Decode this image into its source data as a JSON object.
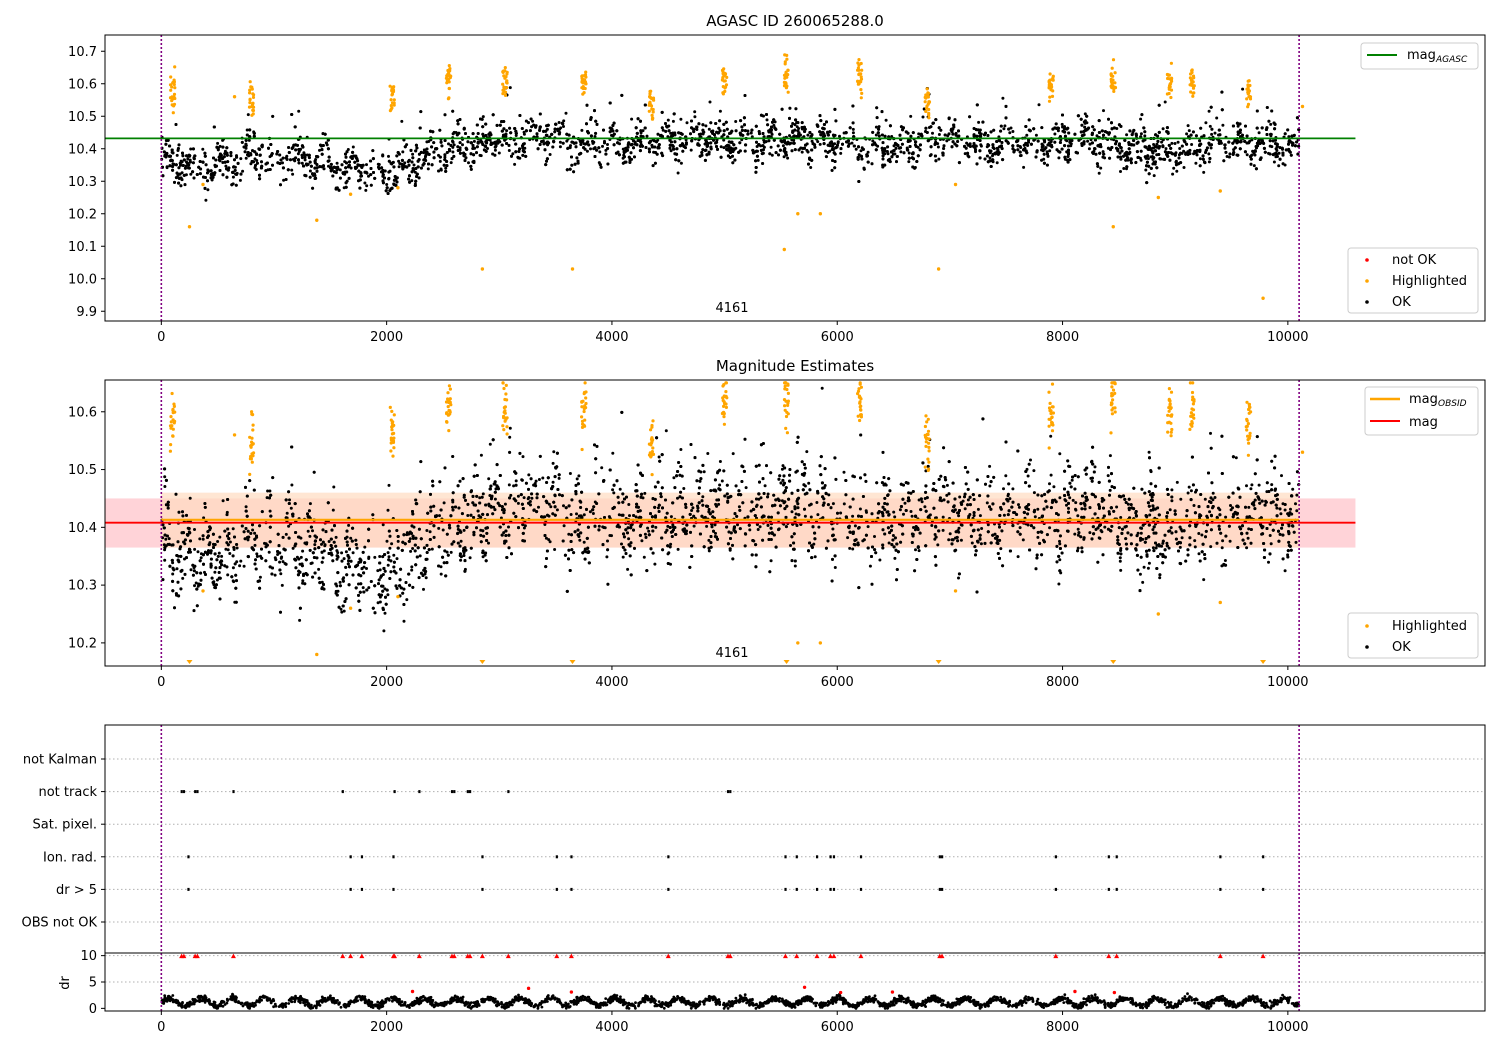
{
  "chart_data": [
    {
      "type": "scatter",
      "title": "AGASC ID 260065288.0",
      "xlabel": "",
      "ylabel": "",
      "xlim": [
        -500,
        11750
      ],
      "ylim": [
        9.87,
        10.75
      ],
      "xticks": [
        0,
        2000,
        4000,
        6000,
        8000,
        10000
      ],
      "yticks": [
        9.9,
        10.0,
        10.1,
        10.2,
        10.3,
        10.4,
        10.5,
        10.6,
        10.7
      ],
      "ytick_labels": [
        "9.9",
        "10.0",
        "10.1",
        "10.2",
        "10.3",
        "10.4",
        "10.5",
        "10.6",
        "10.7"
      ],
      "grid": false,
      "annotation": "4161",
      "annotation_x": 5000,
      "vlines": [
        0,
        10100
      ],
      "hlines": [
        {
          "name": "mag_AGASC",
          "y": 10.432,
          "x_range": [
            -500,
            10600
          ],
          "color": "#008000"
        }
      ],
      "legends": [
        {
          "position": "upper right",
          "entries": [
            {
              "label": "mag",
              "sub": "AGASC",
              "kind": "line",
              "color": "#008000"
            }
          ]
        },
        {
          "position": "lower right",
          "entries": [
            {
              "label": "not OK",
              "kind": "dot",
              "color": "#ff0000"
            },
            {
              "label": "Highlighted",
              "kind": "dot",
              "color": "#ffa500"
            },
            {
              "label": "OK",
              "kind": "dot",
              "color": "#000000"
            }
          ]
        }
      ],
      "series": [
        {
          "name": "OK",
          "color": "#000000",
          "x_range": [
            0,
            10100
          ],
          "mean_curve": [
            [
              0,
              10.37
            ],
            [
              400,
              10.34
            ],
            [
              800,
              10.38
            ],
            [
              1200,
              10.37
            ],
            [
              1500,
              10.35
            ],
            [
              1800,
              10.33
            ],
            [
              2100,
              10.33
            ],
            [
              2400,
              10.39
            ],
            [
              2800,
              10.42
            ],
            [
              3300,
              10.44
            ],
            [
              3800,
              10.41
            ],
            [
              4300,
              10.42
            ],
            [
              4800,
              10.43
            ],
            [
              5300,
              10.42
            ],
            [
              5800,
              10.44
            ],
            [
              6300,
              10.4
            ],
            [
              6800,
              10.43
            ],
            [
              7300,
              10.41
            ],
            [
              7800,
              10.42
            ],
            [
              8200,
              10.43
            ],
            [
              8700,
              10.39
            ],
            [
              9200,
              10.41
            ],
            [
              9700,
              10.42
            ],
            [
              10100,
              10.4
            ]
          ],
          "spread": 0.03
        },
        {
          "name": "Highlighted",
          "color": "#ffa500",
          "clusters": [
            [
              100,
              10.58
            ],
            [
              800,
              10.55
            ],
            [
              2050,
              10.57
            ],
            [
              2550,
              10.61
            ],
            [
              3050,
              10.61
            ],
            [
              3750,
              10.6
            ],
            [
              4350,
              10.54
            ],
            [
              5000,
              10.62
            ],
            [
              5550,
              10.62
            ],
            [
              6200,
              10.61
            ],
            [
              6800,
              10.55
            ],
            [
              7900,
              10.59
            ],
            [
              8450,
              10.62
            ],
            [
              8950,
              10.6
            ],
            [
              9150,
              10.61
            ],
            [
              9650,
              10.58
            ]
          ],
          "outliers": [
            [
              250,
              10.16
            ],
            [
              370,
              10.29
            ],
            [
              650,
              10.56
            ],
            [
              1380,
              10.18
            ],
            [
              1680,
              10.26
            ],
            [
              2100,
              10.28
            ],
            [
              2850,
              10.03
            ],
            [
              3650,
              10.03
            ],
            [
              5530,
              10.09
            ],
            [
              5650,
              10.2
            ],
            [
              5850,
              10.2
            ],
            [
              6900,
              10.03
            ],
            [
              7050,
              10.29
            ],
            [
              8450,
              10.16
            ],
            [
              8850,
              10.25
            ],
            [
              9400,
              10.27
            ],
            [
              9780,
              9.94
            ],
            [
              10130,
              10.53
            ]
          ]
        }
      ]
    },
    {
      "type": "scatter",
      "title": "Magnitude Estimates",
      "xlabel": "",
      "ylabel": "",
      "xlim": [
        -500,
        11750
      ],
      "ylim": [
        10.16,
        10.655
      ],
      "xticks": [
        0,
        2000,
        4000,
        6000,
        8000,
        10000
      ],
      "yticks": [
        10.2,
        10.3,
        10.4,
        10.5,
        10.6
      ],
      "ytick_labels": [
        "10.2",
        "10.3",
        "10.4",
        "10.5",
        "10.6"
      ],
      "grid": false,
      "annotation": "4161",
      "annotation_x": 5000,
      "vlines": [
        0,
        10100
      ],
      "bands": [
        {
          "y": [
            10.365,
            10.45
          ],
          "x_range": [
            -500,
            10600
          ],
          "color": "#ffc0c8"
        },
        {
          "y": [
            10.365,
            10.46
          ],
          "x_range": [
            0,
            10100
          ],
          "color": "#ffdcc0"
        }
      ],
      "hlines": [
        {
          "name": "mag",
          "y": 10.408,
          "x_range": [
            -500,
            10600
          ],
          "color": "#ff0000"
        },
        {
          "name": "mag_OBSID",
          "y": 10.413,
          "x_range": [
            0,
            10100
          ],
          "color": "#ffa500"
        }
      ],
      "clipped_markers_x": [
        250,
        2850,
        3650,
        5550,
        6900,
        8450,
        9780
      ],
      "legends": [
        {
          "position": "upper right",
          "entries": [
            {
              "label": "mag",
              "sub": "OBSID",
              "kind": "line",
              "color": "#ffa500"
            },
            {
              "label": "mag",
              "kind": "line",
              "color": "#ff0000"
            }
          ]
        },
        {
          "position": "lower right",
          "entries": [
            {
              "label": "Highlighted",
              "kind": "dot",
              "color": "#ffa500"
            },
            {
              "label": "OK",
              "kind": "dot",
              "color": "#000000"
            }
          ]
        }
      ]
    },
    {
      "type": "scatter",
      "title": "",
      "xlabel": "",
      "ylabel": "",
      "xlim": [
        -500,
        11750
      ],
      "categories": [
        "not Kalman",
        "not track",
        "Sat. pixel.",
        "Ion. rad.",
        "dr > 5",
        "OBS not OK"
      ],
      "vlines": [
        0,
        10100
      ],
      "flags": {
        "not Kalman": [],
        "not track": [
          180,
          200,
          300,
          320,
          640,
          1610,
          2070,
          2290,
          2580,
          2600,
          2720,
          2740,
          3080,
          5030,
          5050
        ],
        "Sat. pixel.": [],
        "Ion. rad.": [
          240,
          1680,
          1780,
          2060,
          2850,
          3510,
          3640,
          4500,
          5540,
          5640,
          5820,
          5940,
          5970,
          6210,
          6910,
          6930,
          7940,
          8410,
          8480,
          9400,
          9780
        ],
        "dr > 5": [
          240,
          1680,
          1780,
          2060,
          2850,
          3510,
          3640,
          4500,
          5540,
          5640,
          5820,
          5940,
          5970,
          6210,
          6910,
          6930,
          7940,
          8410,
          8480,
          9400,
          9780
        ],
        "OBS not OK": []
      }
    },
    {
      "type": "scatter",
      "title": "",
      "xlabel": "",
      "ylabel": "dr",
      "xlim": [
        -500,
        11750
      ],
      "ylim": [
        -0.5,
        10.5
      ],
      "xticks": [
        0,
        2000,
        4000,
        6000,
        8000,
        10000
      ],
      "yticks": [
        0,
        5,
        10
      ],
      "ytick_labels": [
        "0",
        "5",
        "10"
      ],
      "vlines": [
        0,
        10100
      ],
      "series": [
        {
          "name": "OK",
          "color": "#000000",
          "x_range": [
            0,
            10100
          ],
          "typical": 1.2,
          "amplitude": 1.0
        },
        {
          "name": "not OK",
          "color": "#ff0000",
          "clipped_at": 10,
          "x": [
            180,
            200,
            300,
            320,
            640,
            1610,
            1680,
            1780,
            2060,
            2070,
            2290,
            2580,
            2600,
            2720,
            2740,
            2850,
            3080,
            3510,
            3640,
            4500,
            5030,
            5050,
            5540,
            5640,
            5820,
            5940,
            5970,
            6210,
            6910,
            6930,
            7940,
            8410,
            8480,
            9400,
            9780
          ],
          "spikes": [
            [
              2230,
              3.2
            ],
            [
              3260,
              3.8
            ],
            [
              3640,
              3.1
            ],
            [
              5710,
              4.0
            ],
            [
              6030,
              3.0
            ],
            [
              6490,
              3.1
            ],
            [
              8110,
              3.2
            ],
            [
              8460,
              3.0
            ]
          ]
        }
      ]
    }
  ]
}
